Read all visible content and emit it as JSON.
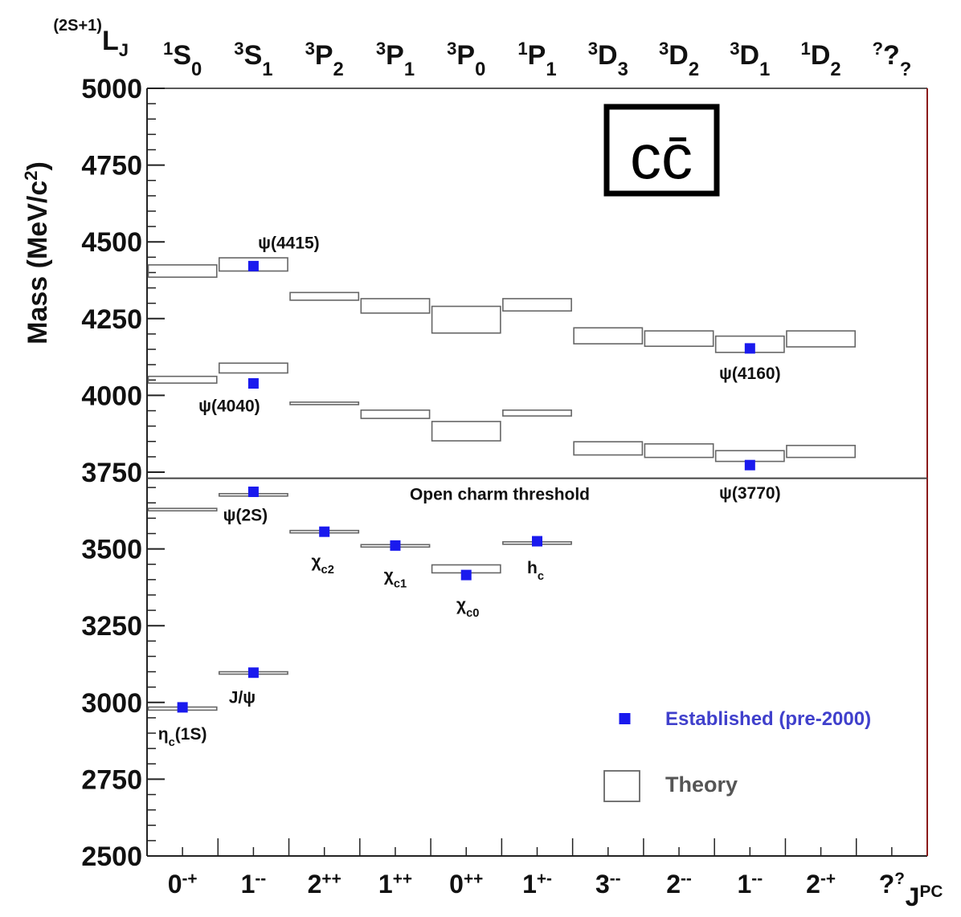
{
  "chart_data": {
    "type": "scatter",
    "title": "",
    "ylabel": "Mass (MeV/c2)",
    "xlabel": "JPC",
    "ylim": [
      2500,
      5000
    ],
    "yticks": [
      2500,
      2750,
      3000,
      3250,
      3500,
      3750,
      4000,
      4250,
      4500,
      4750,
      5000
    ],
    "corner_label": "(2S+1)LJ",
    "columns": [
      {
        "spectro": "1S0",
        "jpc": "0-+"
      },
      {
        "spectro": "3S1",
        "jpc": "1--"
      },
      {
        "spectro": "3P2",
        "jpc": "2++"
      },
      {
        "spectro": "3P1",
        "jpc": "1++"
      },
      {
        "spectro": "3P0",
        "jpc": "0++"
      },
      {
        "spectro": "1P1",
        "jpc": "1+-"
      },
      {
        "spectro": "3D3",
        "jpc": "3--"
      },
      {
        "spectro": "3D2",
        "jpc": "2--"
      },
      {
        "spectro": "3D1",
        "jpc": "1--"
      },
      {
        "spectro": "1D2",
        "jpc": "2-+"
      },
      {
        "spectro": "???",
        "jpc": "??"
      }
    ],
    "established": [
      {
        "name": "ηc(1S)",
        "col": 0,
        "mass": 2984
      },
      {
        "name": "J/ψ",
        "col": 1,
        "mass": 3097
      },
      {
        "name": "ψ(2S)",
        "col": 1,
        "mass": 3686
      },
      {
        "name": "ψ(4040)",
        "col": 1,
        "mass": 4039
      },
      {
        "name": "ψ(4415)",
        "col": 1,
        "mass": 4421
      },
      {
        "name": "χc2",
        "col": 2,
        "mass": 3556
      },
      {
        "name": "χc1",
        "col": 3,
        "mass": 3511
      },
      {
        "name": "χc0",
        "col": 4,
        "mass": 3415
      },
      {
        "name": "hc",
        "col": 5,
        "mass": 3525
      },
      {
        "name": "ψ(3770)",
        "col": 8,
        "mass": 3773
      },
      {
        "name": "ψ(4160)",
        "col": 8,
        "mass": 4153
      }
    ],
    "theory": [
      {
        "col": 0,
        "lo": 2975,
        "hi": 2985
      },
      {
        "col": 0,
        "lo": 3625,
        "hi": 3632
      },
      {
        "col": 0,
        "lo": 4040,
        "hi": 4062
      },
      {
        "col": 0,
        "lo": 4385,
        "hi": 4425
      },
      {
        "col": 1,
        "lo": 3093,
        "hi": 3100
      },
      {
        "col": 1,
        "lo": 3675,
        "hi": 3680
      },
      {
        "col": 1,
        "lo": 4073,
        "hi": 4105
      },
      {
        "col": 1,
        "lo": 4405,
        "hi": 4448
      },
      {
        "col": 2,
        "lo": 3553,
        "hi": 3560
      },
      {
        "col": 2,
        "lo": 3970,
        "hi": 3978
      },
      {
        "col": 2,
        "lo": 4310,
        "hi": 4335
      },
      {
        "col": 3,
        "lo": 3507,
        "hi": 3514
      },
      {
        "col": 3,
        "lo": 3925,
        "hi": 3952
      },
      {
        "col": 3,
        "lo": 4268,
        "hi": 4315
      },
      {
        "col": 4,
        "lo": 3422,
        "hi": 3448
      },
      {
        "col": 4,
        "lo": 3852,
        "hi": 3915
      },
      {
        "col": 4,
        "lo": 4203,
        "hi": 4290
      },
      {
        "col": 5,
        "lo": 3518,
        "hi": 3523
      },
      {
        "col": 5,
        "lo": 3933,
        "hi": 3952
      },
      {
        "col": 5,
        "lo": 4275,
        "hi": 4315
      },
      {
        "col": 6,
        "lo": 3806,
        "hi": 3849
      },
      {
        "col": 6,
        "lo": 4168,
        "hi": 4220
      },
      {
        "col": 7,
        "lo": 3798,
        "hi": 3842
      },
      {
        "col": 7,
        "lo": 4160,
        "hi": 4210
      },
      {
        "col": 8,
        "lo": 3785,
        "hi": 3820
      },
      {
        "col": 8,
        "lo": 4140,
        "hi": 4193
      },
      {
        "col": 9,
        "lo": 3798,
        "hi": 3837
      },
      {
        "col": 9,
        "lo": 4158,
        "hi": 4210
      }
    ],
    "threshold": {
      "mass": 3730,
      "label": "Open charm threshold"
    },
    "legend": {
      "established_label": "Established (pre-2000)",
      "theory_label": "Theory",
      "placement": "bottom-right"
    },
    "logo_text": "cc̄"
  },
  "colors": {
    "established": "#1a1aee",
    "legend_text": "#4040cc",
    "theory_box": "#666666",
    "right_axis": "#8b1a1a",
    "axis": "#222222"
  }
}
